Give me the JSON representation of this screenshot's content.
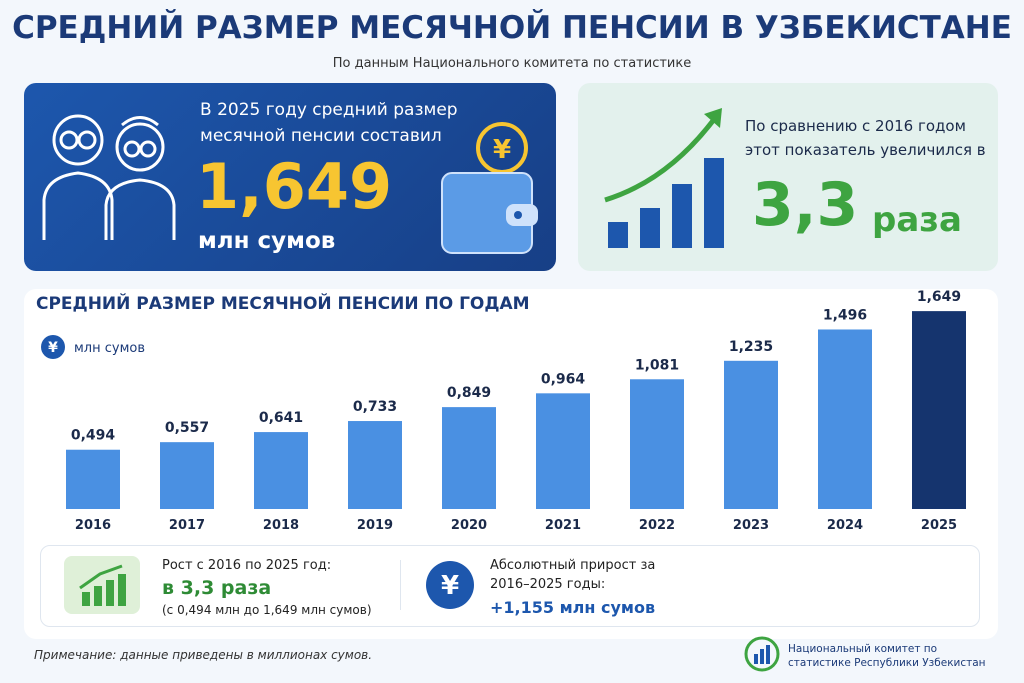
{
  "header": {
    "title": "СРЕДНИЙ РАЗМЕР МЕСЯЧНОЙ ПЕНСИИ В УЗБЕКИСТАНЕ",
    "subtitle": "По данным Национального комитета по статистике"
  },
  "highlight": {
    "text": "В 2025 году средний размер месячной пенсии составил",
    "value": "1,649",
    "unit": "млн сумов"
  },
  "comparison": {
    "text": "По сравнению с 2016 годом этот показатель увеличился в",
    "value": "3,3",
    "unit": "раза"
  },
  "chart_data": {
    "type": "bar",
    "title": "СРЕДНИЙ РАЗМЕР МЕСЯЧНОЙ ПЕНСИИ ПО ГОДАМ",
    "unit": "млн сумов",
    "categories": [
      "2016",
      "2017",
      "2018",
      "2019",
      "2020",
      "2021",
      "2022",
      "2023",
      "2024",
      "2025"
    ],
    "values": [
      0.494,
      0.557,
      0.641,
      0.733,
      0.849,
      0.964,
      1.081,
      1.235,
      1.496,
      1.649
    ],
    "value_labels": [
      "0,494",
      "0,557",
      "0,641",
      "0,733",
      "0,849",
      "0,964",
      "1,081",
      "1,235",
      "1,496",
      "1,649"
    ],
    "colors": [
      "#4a90e2",
      "#4a90e2",
      "#4a90e2",
      "#4a90e2",
      "#4a90e2",
      "#4a90e2",
      "#4a90e2",
      "#4a90e2",
      "#4a90e2",
      "#15346e"
    ]
  },
  "summary": {
    "growth": {
      "label": "Рост с 2016 по 2025 год:",
      "value": "в 3,3 раза",
      "detail": "(с 0,494 млн до 1,649 млн сумов)"
    },
    "increase": {
      "label": "Абсолютный прирост за 2016–2025 годы:",
      "value": "+1,155 млн сумов"
    }
  },
  "footer": {
    "note": "Примечание: данные приведены в миллионах сумов.",
    "source": "Национальный комитет по статистике Республики Узбекистан"
  }
}
